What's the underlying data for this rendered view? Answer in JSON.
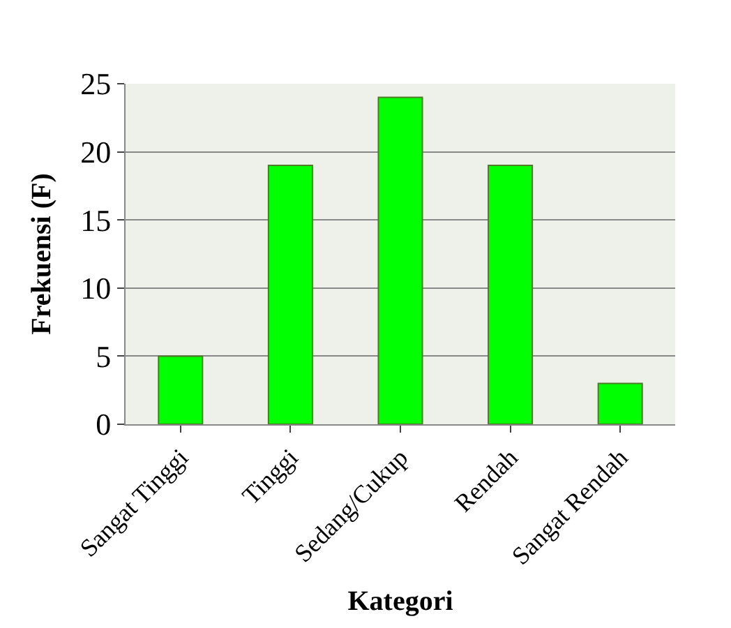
{
  "chart_data": {
    "type": "bar",
    "categories": [
      "Sangat Tinggi",
      "Tinggi",
      "Sedang/Cukup",
      "Rendah",
      "Sangat Rendah"
    ],
    "values": [
      5,
      19,
      24,
      19,
      3
    ],
    "color": "#00ff00",
    "xlabel": "Kategori",
    "ylabel": "Frekuensi (F)",
    "ylim": [
      0,
      25
    ],
    "yticks": [
      0,
      5,
      10,
      15,
      20,
      25
    ],
    "grid": "y",
    "legend": false
  }
}
